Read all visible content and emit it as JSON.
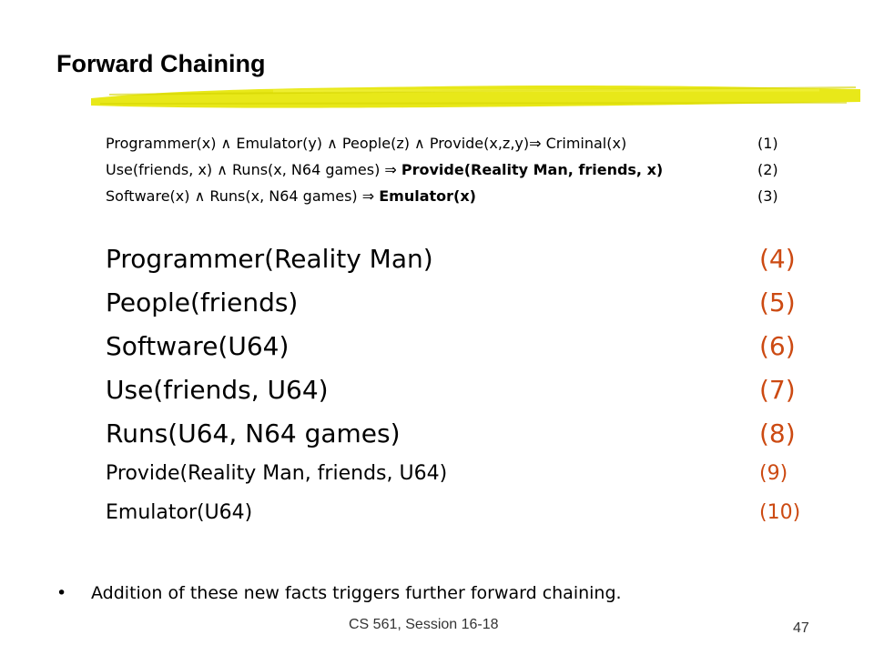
{
  "slide": {
    "title": "Forward Chaining",
    "rules": [
      {
        "parts": [
          {
            "text": "Programmer(x) ∧ Emulator(y) ∧ People(z) ∧ Provide(x,z,y)⇒ Criminal(x)",
            "bold": false
          }
        ],
        "number": "(1)"
      },
      {
        "parts": [
          {
            "text": "Use(friends, x) ∧ Runs(x, N64 games) ⇒ ",
            "bold": false
          },
          {
            "text": "Provide(Reality Man, friends, x)",
            "bold": true
          }
        ],
        "number": "(2)"
      },
      {
        "parts": [
          {
            "text": "Software(x) ∧ Runs(x, N64 games) ⇒ ",
            "bold": false
          },
          {
            "text": "Emulator(x)",
            "bold": true
          }
        ],
        "number": "(3)"
      }
    ],
    "facts": [
      {
        "text": "Programmer(Reality Man)",
        "number": "(4)"
      },
      {
        "text": "People(friends)",
        "number": "(5)"
      },
      {
        "text": "Software(U64)",
        "number": "(6)"
      },
      {
        "text": "Use(friends, U64)",
        "number": "(7)"
      },
      {
        "text": "Runs(U64, N64 games)",
        "number": "(8)"
      },
      {
        "text": "Provide(Reality Man, friends, U64)",
        "number": "(9)"
      },
      {
        "text": "Emulator(U64)",
        "number": "(10)"
      }
    ],
    "bullet": "Addition of these new facts triggers further forward chaining.",
    "footer": "CS 561,  Session 16-18",
    "page_number": "47",
    "colors": {
      "brush": "#e6e600",
      "fact_number": "#cc4a12"
    }
  }
}
